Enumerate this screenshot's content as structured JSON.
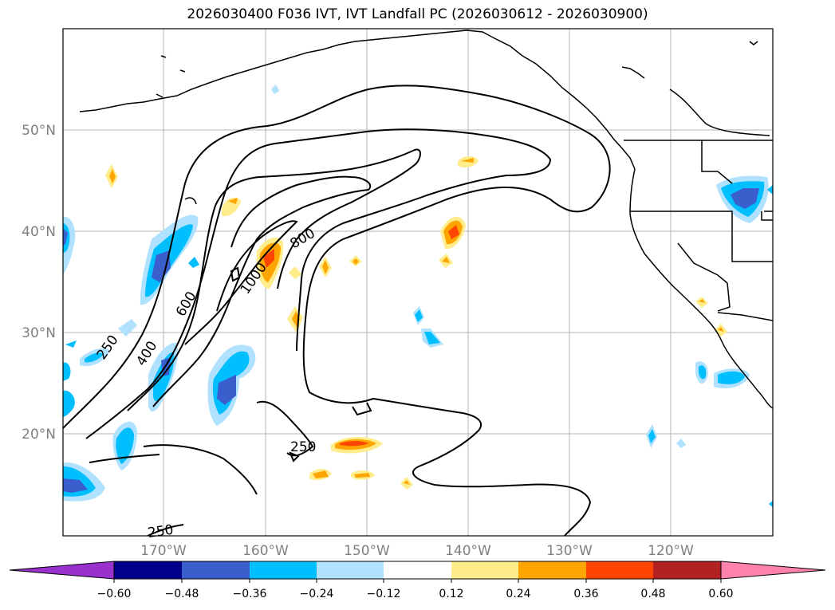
{
  "title": "2026030400 F036 IVT, IVT Landfall PC (2026030612 - 2026030900)",
  "lat_labels": [
    "50°N",
    "40°N",
    "30°N",
    "20°N"
  ],
  "lon_labels": [
    "170°W",
    "160°W",
    "150°W",
    "140°W",
    "130°W",
    "120°W"
  ],
  "ivt_contour_labels": [
    "250",
    "400",
    "600",
    "800",
    "1000",
    "250",
    "250"
  ],
  "colorbar": {
    "ticks": [
      "−0.60",
      "−0.48",
      "−0.36",
      "−0.24",
      "−0.12",
      "0.12",
      "0.24",
      "0.36",
      "0.48",
      "0.60"
    ],
    "colors": [
      "#9932cc",
      "#00008b",
      "#3a5fcd",
      "#00bfff",
      "#b0e2ff",
      "#ffffff",
      "#ffec8b",
      "#ffa500",
      "#ff4500",
      "#b22222",
      "#ff82ab"
    ]
  },
  "colors": {
    "coast": "#000000",
    "grid": "#b4b4b4",
    "contour": "#000000"
  }
}
